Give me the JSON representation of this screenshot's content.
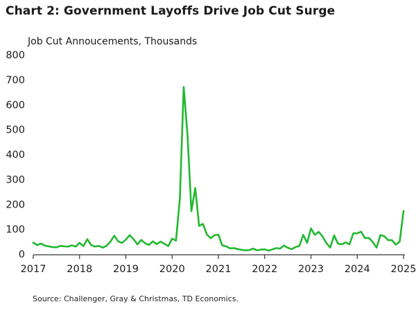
{
  "colors": {
    "line": "#22b830",
    "axis": "#333333",
    "text": "#1a1a1a"
  },
  "chart_data": {
    "type": "line",
    "title": "Chart 2: Government Layoffs Drive Job Cut Surge",
    "ylabel": "Job Cut Annoucements, Thousands",
    "xlabel": "",
    "source": "Source:  Challenger, Gray & Christmas, TD Economics.",
    "ylim": [
      0,
      800
    ],
    "yticks": [
      "0",
      "100",
      "200",
      "300",
      "400",
      "500",
      "600",
      "700",
      "800"
    ],
    "xlim": [
      2017,
      2025
    ],
    "xticks": [
      "2017",
      "2018",
      "2019",
      "2020",
      "2021",
      "2022",
      "2023",
      "2024",
      "2025"
    ],
    "grid": false,
    "series": [
      {
        "name": "Job Cut Announcements",
        "x": [
          2017.0,
          2017.083,
          2017.167,
          2017.25,
          2017.333,
          2017.417,
          2017.5,
          2017.583,
          2017.667,
          2017.75,
          2017.833,
          2017.917,
          2018.0,
          2018.083,
          2018.167,
          2018.25,
          2018.333,
          2018.417,
          2018.5,
          2018.583,
          2018.667,
          2018.75,
          2018.833,
          2018.917,
          2019.0,
          2019.083,
          2019.167,
          2019.25,
          2019.333,
          2019.417,
          2019.5,
          2019.583,
          2019.667,
          2019.75,
          2019.833,
          2019.917,
          2020.0,
          2020.083,
          2020.167,
          2020.25,
          2020.333,
          2020.417,
          2020.5,
          2020.583,
          2020.667,
          2020.75,
          2020.833,
          2020.917,
          2021.0,
          2021.083,
          2021.167,
          2021.25,
          2021.333,
          2021.417,
          2021.5,
          2021.583,
          2021.667,
          2021.75,
          2021.833,
          2021.917,
          2022.0,
          2022.083,
          2022.167,
          2022.25,
          2022.333,
          2022.417,
          2022.5,
          2022.583,
          2022.667,
          2022.75,
          2022.833,
          2022.917,
          2023.0,
          2023.083,
          2023.167,
          2023.25,
          2023.333,
          2023.417,
          2023.5,
          2023.583,
          2023.667,
          2023.75,
          2023.833,
          2023.917,
          2024.0,
          2024.083,
          2024.167,
          2024.25,
          2024.333,
          2024.417,
          2024.5,
          2024.583,
          2024.667,
          2024.75,
          2024.833,
          2024.917,
          2025.0,
          2025.083
        ],
        "values": [
          46,
          36,
          42,
          34,
          31,
          28,
          27,
          33,
          31,
          30,
          35,
          30,
          45,
          32,
          60,
          36,
          30,
          33,
          26,
          33,
          50,
          74,
          51,
          45,
          58,
          76,
          60,
          39,
          57,
          43,
          37,
          51,
          40,
          50,
          41,
          32,
          62,
          54,
          222,
          671,
          478,
          172,
          265,
          113,
          121,
          79,
          64,
          76,
          78,
          35,
          31,
          23,
          24,
          20,
          17,
          15,
          16,
          22,
          15,
          18,
          19,
          14,
          19,
          24,
          22,
          34,
          25,
          20,
          28,
          33,
          77,
          45,
          103,
          77,
          89,
          71,
          44,
          26,
          75,
          42,
          39,
          47,
          39,
          84,
          83,
          90,
          64,
          65,
          49,
          26,
          76,
          72,
          56,
          56,
          38,
          50,
          173,
          null
        ]
      }
    ]
  }
}
